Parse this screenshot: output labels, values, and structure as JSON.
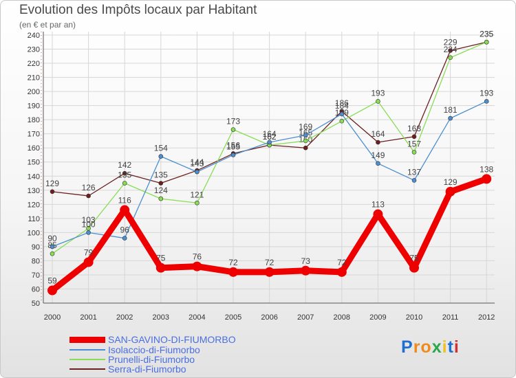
{
  "title": "Evolution des Impôts locaux par Habitant",
  "subtitle": "(en € et par an)",
  "logo": "Proxiti",
  "chart_data": {
    "type": "line",
    "title": "Evolution des Impôts locaux par Habitant",
    "subtitle": "(en € et par an)",
    "x": [
      "2000",
      "2001",
      "2002",
      "2003",
      "2004",
      "2005",
      "2006",
      "2007",
      "2008",
      "2009",
      "2010",
      "2011",
      "2012"
    ],
    "ylim": [
      50,
      240
    ],
    "yticks": [
      50,
      60,
      70,
      80,
      90,
      100,
      110,
      120,
      130,
      140,
      150,
      160,
      170,
      180,
      190,
      200,
      210,
      220,
      230,
      240
    ],
    "grid": true,
    "series": [
      {
        "name": "SAN-GAVINO-DI-FIUMORBO",
        "color": "#ee0000",
        "values": [
          59,
          79,
          116,
          75,
          76,
          72,
          72,
          73,
          72,
          113,
          75,
          129,
          138
        ]
      },
      {
        "name": "Isolaccio-di-Fiumorbo",
        "color": "#4d8ecf",
        "values": [
          90,
          100,
          96,
          154,
          143,
          155,
          164,
          169,
          184,
          149,
          137,
          181,
          193
        ]
      },
      {
        "name": "Prunelli-di-Fiumorbo",
        "color": "#88dd55",
        "values": [
          85,
          103,
          135,
          124,
          121,
          173,
          162,
          165,
          179,
          193,
          157,
          224,
          235
        ]
      },
      {
        "name": "Serra-di-Fiumorbo",
        "color": "#6b1f1f",
        "values": [
          129,
          126,
          142,
          135,
          144,
          156,
          162,
          160,
          186,
          164,
          168,
          229,
          235
        ]
      }
    ]
  }
}
